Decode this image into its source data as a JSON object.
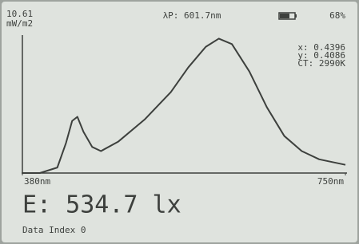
{
  "status": {
    "power": "10.61",
    "power_unit": "mW/m2",
    "peak_wavelength": "λP: 601.7nm",
    "battery": "68%"
  },
  "color_info": {
    "x": "x: 0.4396",
    "y": "y: 0.4086",
    "ct": "CT: 2990K"
  },
  "chart_data": {
    "type": "line",
    "x": [
      380,
      400,
      420,
      430,
      437,
      443,
      450,
      460,
      470,
      490,
      520,
      550,
      570,
      590,
      605,
      620,
      640,
      660,
      680,
      700,
      720,
      750
    ],
    "series": [
      {
        "color": "#3d403d",
        "values": [
          0,
          0,
          0.04,
          0.22,
          0.38,
          0.41,
          0.3,
          0.19,
          0.16,
          0.23,
          0.39,
          0.59,
          0.77,
          0.92,
          0.98,
          0.94,
          0.74,
          0.48,
          0.27,
          0.16,
          0.1,
          0.06
        ]
      }
    ],
    "xlim": [
      380,
      750
    ],
    "ylim": [
      0,
      1
    ],
    "xticks": [
      {
        "value": 380,
        "label": "380nm"
      },
      {
        "value": 750,
        "label": "750nm"
      }
    ]
  },
  "illuminance": "E: 534.7 lx",
  "footer": "Data Index 0"
}
